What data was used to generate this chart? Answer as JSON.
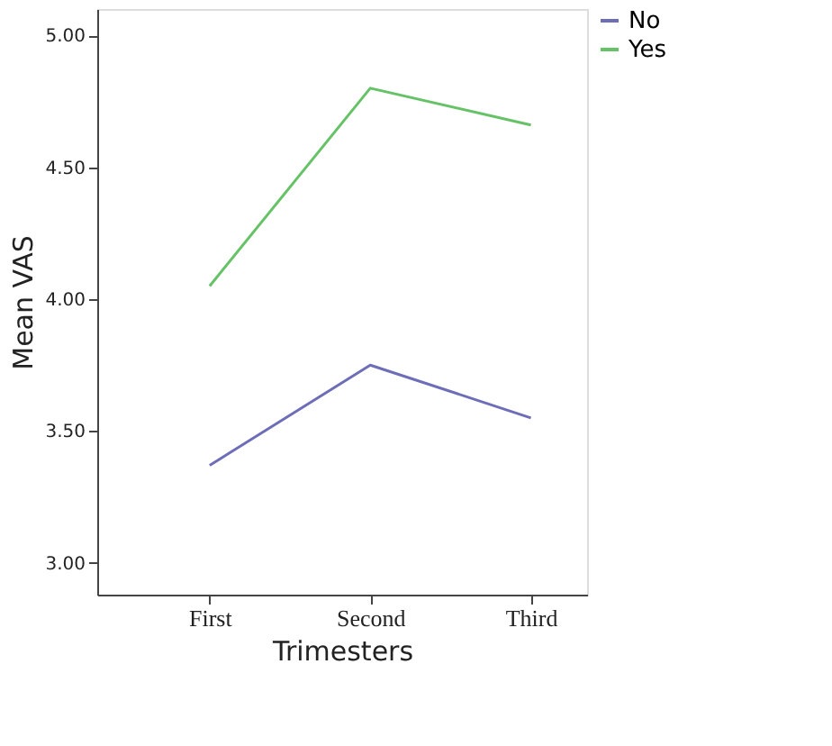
{
  "chart_data": {
    "type": "line",
    "xlabel": "Trimesters",
    "ylabel": "Mean VAS",
    "categories": [
      "First",
      "Second",
      "Third"
    ],
    "series": [
      {
        "name": "No",
        "color": "#6e6eb8",
        "values": [
          3.37,
          3.75,
          3.55
        ]
      },
      {
        "name": "Yes",
        "color": "#66c266",
        "values": [
          4.05,
          4.8,
          4.66
        ]
      }
    ],
    "ylim": [
      2.88,
      5.1
    ],
    "yticks": [
      {
        "value": 3,
        "label": "3.00"
      },
      {
        "value": 3.5,
        "label": "3.50"
      },
      {
        "value": 4,
        "label": "4.00"
      },
      {
        "value": 4.5,
        "label": "4.50"
      },
      {
        "value": 5,
        "label": "5.00"
      }
    ],
    "grid": false,
    "legend": "right",
    "marker": "none",
    "line_style": "solid"
  }
}
